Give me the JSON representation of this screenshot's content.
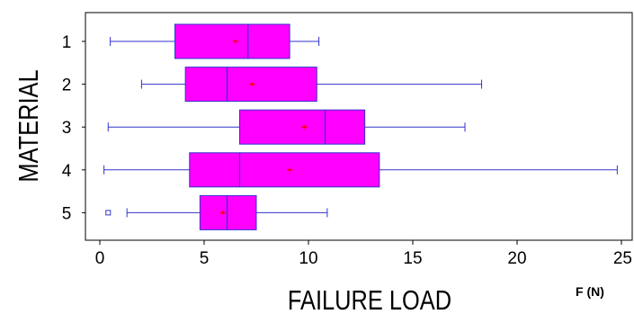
{
  "chart_data": {
    "type": "boxplot",
    "orientation": "horizontal",
    "title": "",
    "xlabel": "FAILURE LOAD",
    "xunit": "F (N)",
    "ylabel": "MATERIAL",
    "xlim": [
      -0.7,
      25
    ],
    "xticks": [
      0,
      5,
      10,
      15,
      20,
      25
    ],
    "grid": false,
    "legend": "none",
    "colors": {
      "box_fill": "#ff00ff",
      "box_stroke": "#3333cc",
      "mean_marker": "#ff0000"
    },
    "categories": [
      "1",
      "2",
      "3",
      "4",
      "5"
    ],
    "boxes": [
      {
        "category": "1",
        "whisker_low": 0.5,
        "q1": 3.6,
        "median": 7.1,
        "q3": 9.1,
        "whisker_high": 10.5,
        "mean": 6.5,
        "outliers": []
      },
      {
        "category": "2",
        "whisker_low": 2.0,
        "q1": 4.1,
        "median": 6.1,
        "q3": 10.4,
        "whisker_high": 18.3,
        "mean": 7.3,
        "outliers": []
      },
      {
        "category": "3",
        "whisker_low": 0.4,
        "q1": 6.7,
        "median": 10.8,
        "q3": 12.7,
        "whisker_high": 17.5,
        "mean": 9.8,
        "outliers": []
      },
      {
        "category": "4",
        "whisker_low": 0.2,
        "q1": 4.3,
        "median": 6.7,
        "q3": 13.4,
        "whisker_high": 24.8,
        "mean": 9.1,
        "outliers": []
      },
      {
        "category": "5",
        "whisker_low": 1.3,
        "q1": 4.8,
        "median": 6.1,
        "q3": 7.5,
        "whisker_high": 10.9,
        "mean": 5.9,
        "outliers": [
          0.4
        ]
      }
    ]
  }
}
